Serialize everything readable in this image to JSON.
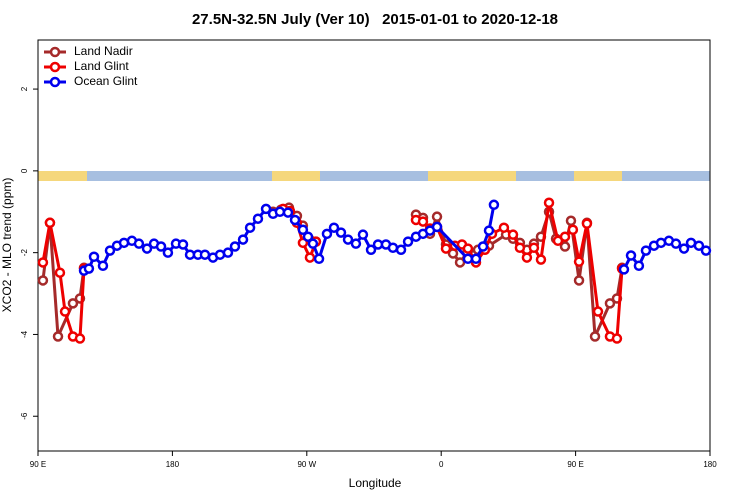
{
  "chart_data": {
    "type": "line",
    "title": "27.5N-32.5N July (Ver 10)   2015-01-01 to 2020-12-18",
    "x_label": "Longitude",
    "y_label": "XCO2 - MLO trend (ppm)",
    "xlim": [
      90,
      540
    ],
    "ylim": [
      -6.85,
      3.2
    ],
    "xticks": [
      {
        "value": 90,
        "label": "90 E"
      },
      180,
      {
        "value": 270,
        "label": "90 W"
      },
      {
        "value": 360,
        "label": "0"
      },
      {
        "value": 450,
        "label": "90 E"
      },
      {
        "value": 540,
        "label": "180"
      }
    ],
    "yticks": [
      -6,
      -4,
      -2,
      0,
      2
    ],
    "legend": "top-left",
    "series": [
      {
        "name": "Land Nadir",
        "color": "#a52a2a",
        "x": [
          93.3,
          98.0,
          103.4,
          113.4,
          118.1,
          120.8,
          184,
          247.4,
          252.7,
          258.1,
          263.4,
          267.4,
          271.5,
          276.1,
          310,
          343.1,
          347.8,
          352.5,
          357.2,
          363.2,
          367.9,
          372.6,
          377.3,
          384.6,
          392.0,
          403.4,
          408.1,
          412.7,
          417.4,
          422.1,
          426.8,
          432.2,
          436.9,
          442.9,
          446.9,
          452.3,
          457.6,
          463.0,
          473.0,
          477.7,
          481.1
        ],
        "values": [
          -2.68,
          -1.27,
          -4.05,
          -3.24,
          -3.12,
          -2.37,
          null,
          -1.0,
          -0.95,
          -0.9,
          -1.1,
          -1.34,
          -1.66,
          -1.73,
          null,
          -1.07,
          -1.15,
          -1.54,
          -1.12,
          -1.8,
          -2.02,
          -2.24,
          -2.0,
          -1.93,
          -1.83,
          -1.56,
          -1.66,
          -1.76,
          -1.93,
          -1.78,
          -1.61,
          -1.0,
          -1.66,
          -1.85,
          -1.22,
          -2.68,
          -1.27,
          -4.05,
          -3.24,
          -3.12,
          -2.37
        ]
      },
      {
        "name": "Land Glint",
        "color": "#ee0000",
        "x": [
          93.3,
          98.0,
          104.7,
          108.1,
          113.4,
          118.1,
          120.8,
          184,
          254.1,
          258.7,
          263.4,
          267.4,
          272.1,
          276.1,
          310,
          343.1,
          347.8,
          352.5,
          357.2,
          363.2,
          369.2,
          373.9,
          377.9,
          383.3,
          389.3,
          394.0,
          402.0,
          408.1,
          412.7,
          417.4,
          422.1,
          426.8,
          432.2,
          438.2,
          442.9,
          448.2,
          452.3,
          457.6,
          465.0,
          473.0,
          477.7,
          481.1
        ],
        "values": [
          -2.24,
          -1.27,
          -2.49,
          -3.44,
          -4.05,
          -4.1,
          -2.39,
          null,
          -0.93,
          -0.98,
          -1.27,
          -1.76,
          -2.12,
          -1.73,
          null,
          -1.2,
          -1.24,
          -1.41,
          -1.37,
          -1.9,
          -1.83,
          -1.8,
          -1.9,
          -2.24,
          -1.93,
          -1.54,
          -1.39,
          -1.56,
          -1.88,
          -2.12,
          -1.88,
          -2.17,
          -0.78,
          -1.71,
          -1.61,
          -1.44,
          -2.22,
          -1.29,
          -3.44,
          -4.05,
          -4.1,
          -2.39
        ]
      },
      {
        "name": "Ocean Glint",
        "color": "#0000ee",
        "x": [
          120.8,
          124.1,
          127.5,
          133.5,
          138.2,
          142.9,
          147.6,
          152.9,
          157.6,
          163.0,
          167.7,
          172.4,
          177.0,
          182.4,
          187.1,
          191.8,
          197.1,
          201.8,
          207.2,
          211.9,
          217.2,
          221.9,
          227.3,
          232.0,
          237.3,
          242.7,
          247.4,
          252.0,
          257.4,
          262.1,
          267.4,
          270.8,
          274.1,
          278.2,
          283.5,
          288.2,
          292.9,
          297.6,
          302.9,
          307.6,
          313.0,
          317.7,
          323.0,
          327.7,
          333.1,
          337.8,
          343.1,
          347.8,
          352.5,
          357.2,
          377.9,
          383.3,
          388.0,
          392.0,
          395.3,
          440,
          482.4,
          487.1,
          492.4,
          497.1,
          502.5,
          507.2,
          512.5,
          517.2,
          522.6,
          527.3,
          532.6,
          537.3
        ],
        "values": [
          -2.44,
          -2.39,
          -2.1,
          -2.32,
          -1.95,
          -1.83,
          -1.76,
          -1.71,
          -1.78,
          -1.9,
          -1.78,
          -1.85,
          -2.0,
          -1.78,
          -1.8,
          -2.05,
          -2.05,
          -2.05,
          -2.12,
          -2.05,
          -2.0,
          -1.85,
          -1.68,
          -1.39,
          -1.17,
          -0.93,
          -1.05,
          -1.0,
          -1.02,
          -1.2,
          -1.44,
          -1.61,
          -1.78,
          -2.15,
          -1.54,
          -1.39,
          -1.51,
          -1.68,
          -1.78,
          -1.56,
          -1.93,
          -1.8,
          -1.8,
          -1.88,
          -1.93,
          -1.73,
          -1.61,
          -1.54,
          -1.46,
          -1.37,
          -2.15,
          -2.15,
          -1.85,
          -1.46,
          -0.83,
          null,
          -2.41,
          -2.07,
          -2.32,
          -1.95,
          -1.83,
          -1.76,
          -1.71,
          -1.78,
          -1.9,
          -1.76,
          -1.83,
          -1.95
        ]
      }
    ]
  }
}
